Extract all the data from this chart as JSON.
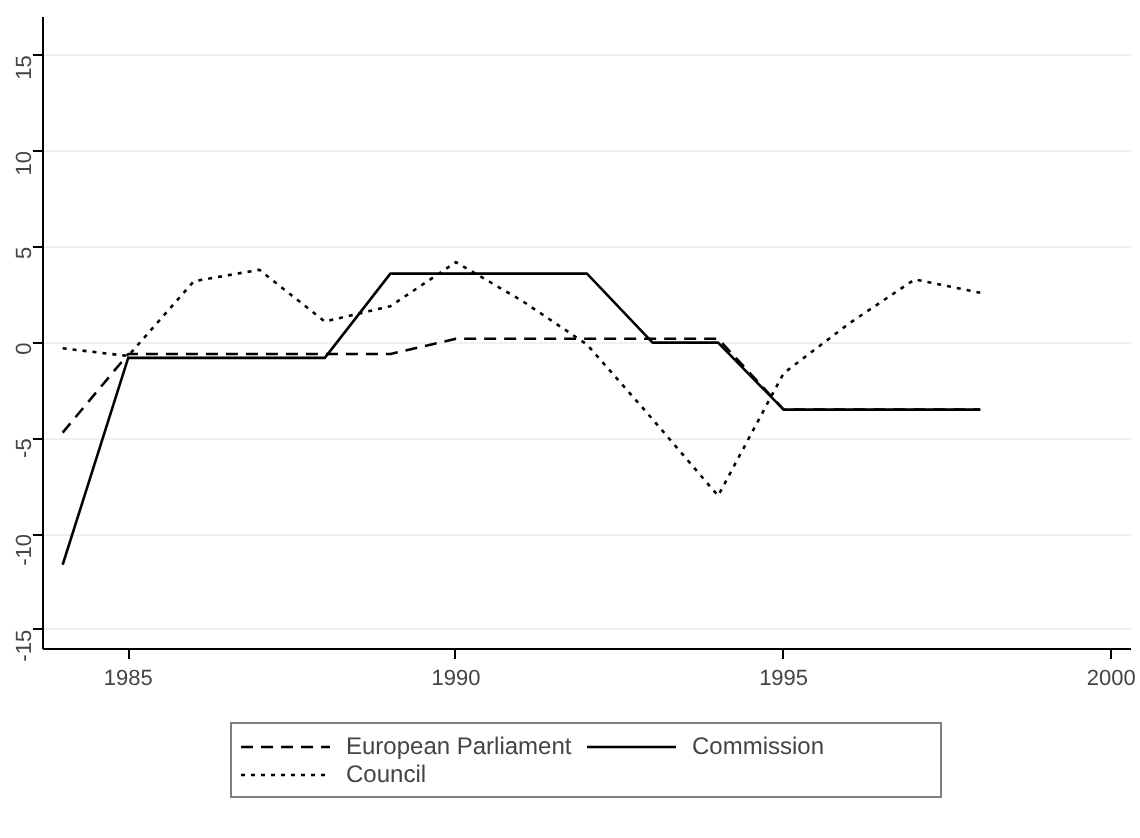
{
  "chart_data": {
    "type": "line",
    "x": [
      1984,
      1985,
      1986,
      1987,
      1988,
      1989,
      1990,
      1991,
      1992,
      1993,
      1994,
      1995,
      1996,
      1997,
      1998
    ],
    "series": [
      {
        "name": "European Parliament",
        "color": "#000000",
        "line_style": "dashed",
        "values": [
          -4.7,
          -0.6,
          -0.6,
          -0.6,
          -0.6,
          -0.6,
          0.2,
          0.2,
          0.2,
          0.2,
          0.2,
          -3.5,
          -3.5,
          -3.5,
          -3.5
        ]
      },
      {
        "name": "Commission",
        "color": "#000000",
        "line_style": "solid",
        "values": [
          -11.6,
          -0.8,
          -0.8,
          -0.8,
          -0.8,
          3.6,
          3.6,
          3.6,
          3.6,
          0.0,
          0.0,
          -3.5,
          -3.5,
          -3.5,
          -3.5
        ]
      },
      {
        "name": "Council",
        "color": "#000000",
        "line_style": "dotted",
        "values": [
          -0.3,
          -0.7,
          3.2,
          3.8,
          1.1,
          1.9,
          4.2,
          2.2,
          -0.1,
          -4.0,
          -8.0,
          -1.6,
          1.0,
          3.3,
          2.6
        ]
      }
    ],
    "xlim": [
      1983.7,
      2000.3
    ],
    "ylim": [
      -16,
      17
    ],
    "xticks": [
      1985,
      1990,
      1995,
      2000
    ],
    "yticks": [
      -15,
      -10,
      -5,
      0,
      5,
      10,
      15
    ],
    "grid": "y",
    "legend": "bottom",
    "marker": "none"
  }
}
